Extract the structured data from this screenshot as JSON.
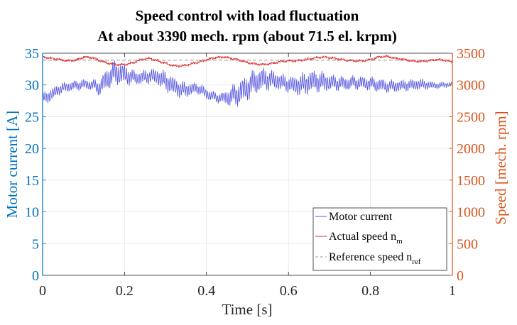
{
  "chart_data": {
    "type": "line",
    "title": [
      "Speed control with load fluctuation",
      "At about 3390 mech. rpm (about 71.5 el. krpm)"
    ],
    "xlabel": "Time [s]",
    "ylabel_left": "Motor current [A]",
    "ylabel_right": "Speed [mech. rpm]",
    "xlim": [
      0,
      1
    ],
    "ylim_left": [
      0,
      35
    ],
    "ylim_right": [
      0,
      3500
    ],
    "x_ticks": [
      0,
      0.2,
      0.4,
      0.6,
      0.8,
      1
    ],
    "x_tick_labels": [
      "0",
      "0.2",
      "0.4",
      "0.6",
      "0.8",
      "1"
    ],
    "y_left_ticks": [
      0,
      5,
      10,
      15,
      20,
      25,
      30,
      35
    ],
    "y_left_tick_labels": [
      "0",
      "5",
      "10",
      "15",
      "20",
      "25",
      "30",
      "35"
    ],
    "y_right_ticks": [
      0,
      500,
      1000,
      1500,
      2000,
      2500,
      3000,
      3500
    ],
    "y_right_tick_labels": [
      "0",
      "500",
      "1000",
      "1500",
      "2000",
      "2500",
      "3000",
      "3500"
    ],
    "grid": true,
    "legend_position": "bottom-right",
    "colors": {
      "left_axis": "#0072BD",
      "right_axis": "#D95319",
      "current": "#5555DD",
      "speed": "#DD3333",
      "reference": "#999999"
    },
    "series": [
      {
        "name": "Motor current",
        "axis": "left",
        "style": "solid",
        "x": [
          0,
          0.02,
          0.04,
          0.06,
          0.08,
          0.1,
          0.12,
          0.14,
          0.16,
          0.18,
          0.2,
          0.22,
          0.24,
          0.26,
          0.28,
          0.3,
          0.32,
          0.34,
          0.36,
          0.38,
          0.4,
          0.42,
          0.44,
          0.46,
          0.48,
          0.5,
          0.52,
          0.54,
          0.56,
          0.58,
          0.6,
          0.62,
          0.64,
          0.66,
          0.68,
          0.7,
          0.72,
          0.74,
          0.76,
          0.78,
          0.8,
          0.82,
          0.84,
          0.86,
          0.88,
          0.9,
          0.92,
          0.94,
          0.96,
          0.98,
          1
        ],
        "y": [
          27.8,
          28.4,
          29.3,
          29.7,
          29.9,
          30.1,
          30.0,
          29.6,
          31.2,
          32.0,
          31.6,
          31.2,
          31.1,
          31.4,
          31.3,
          30.6,
          29.8,
          29.2,
          29.3,
          29.5,
          28.6,
          28.1,
          27.9,
          28.2,
          28.7,
          29.6,
          30.6,
          30.9,
          30.8,
          30.5,
          30.1,
          29.9,
          30.2,
          30.6,
          30.5,
          30.4,
          30.3,
          30.2,
          30.4,
          30.3,
          30.2,
          30.0,
          29.8,
          29.8,
          29.9,
          30.0,
          30.1,
          30.0,
          29.9,
          30.0,
          30.1
        ],
        "amplitude": [
          1.0,
          1.2,
          1.0,
          0.9,
          0.9,
          0.9,
          0.9,
          1.5,
          2.0,
          2.2,
          1.8,
          1.3,
          1.2,
          1.3,
          1.5,
          1.7,
          1.7,
          1.5,
          1.2,
          1.0,
          1.0,
          0.9,
          1.0,
          1.8,
          2.2,
          2.3,
          2.2,
          2.0,
          1.7,
          1.5,
          1.4,
          1.8,
          2.0,
          2.0,
          1.8,
          1.5,
          1.3,
          1.2,
          1.2,
          1.2,
          1.2,
          1.2,
          1.1,
          1.1,
          1.0,
          1.0,
          1.0,
          0.8,
          0.6,
          0.5,
          0.4
        ]
      },
      {
        "name": "Actual speed n",
        "name_subscript": "m",
        "axis": "right",
        "style": "solid",
        "x": [
          0,
          0.02,
          0.04,
          0.06,
          0.08,
          0.1,
          0.12,
          0.14,
          0.16,
          0.18,
          0.2,
          0.22,
          0.24,
          0.26,
          0.28,
          0.3,
          0.32,
          0.34,
          0.36,
          0.38,
          0.4,
          0.42,
          0.44,
          0.46,
          0.48,
          0.5,
          0.52,
          0.54,
          0.56,
          0.58,
          0.6,
          0.62,
          0.64,
          0.66,
          0.68,
          0.7,
          0.72,
          0.74,
          0.76,
          0.78,
          0.8,
          0.82,
          0.84,
          0.86,
          0.88,
          0.9,
          0.92,
          0.94,
          0.96,
          0.98,
          1
        ],
        "y": [
          3440,
          3420,
          3400,
          3380,
          3390,
          3440,
          3430,
          3380,
          3340,
          3320,
          3320,
          3350,
          3400,
          3420,
          3380,
          3340,
          3300,
          3300,
          3330,
          3360,
          3400,
          3430,
          3440,
          3420,
          3390,
          3350,
          3330,
          3320,
          3340,
          3370,
          3380,
          3380,
          3400,
          3420,
          3440,
          3430,
          3410,
          3390,
          3380,
          3380,
          3400,
          3440,
          3450,
          3420,
          3400,
          3380,
          3370,
          3380,
          3400,
          3390,
          3360
        ]
      },
      {
        "name": "Reference speed n",
        "name_subscript": "ref",
        "axis": "right",
        "style": "dashed",
        "x": [
          0,
          1
        ],
        "y": [
          3390,
          3390
        ]
      }
    ]
  }
}
